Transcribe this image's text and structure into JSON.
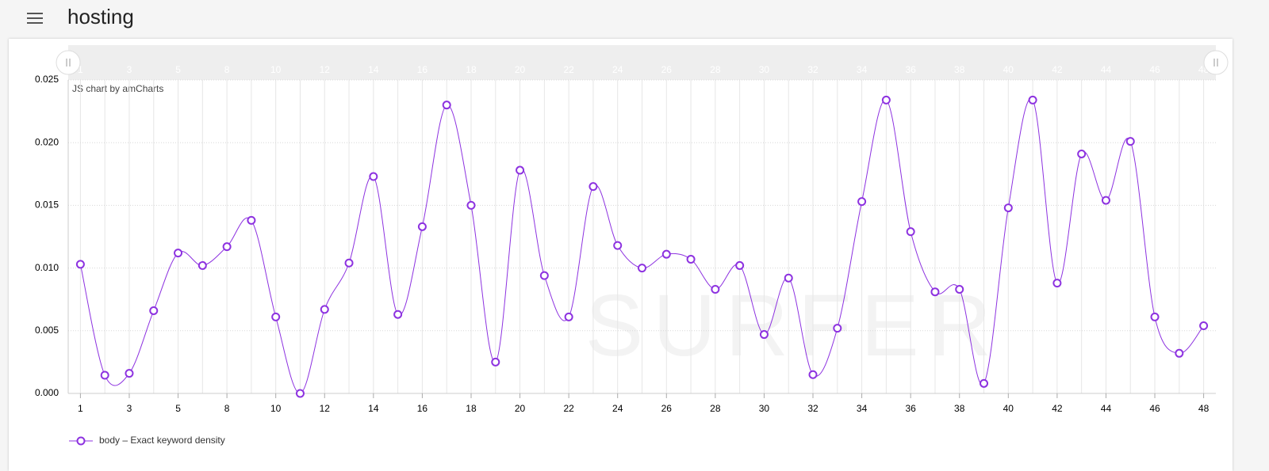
{
  "header": {
    "title": "hosting"
  },
  "chart_data": {
    "type": "line",
    "credit": "JS chart by amCharts",
    "watermark": "SURFER",
    "categories": [
      "1",
      null,
      "3",
      null,
      "5",
      null,
      "8",
      null,
      "10",
      null,
      "12",
      null,
      "14",
      null,
      "16",
      null,
      "18",
      null,
      "20",
      null,
      "22",
      null,
      "24",
      null,
      "26",
      null,
      "28",
      null,
      "30",
      null,
      "32",
      null,
      "34",
      null,
      "36",
      null,
      "38",
      null,
      "40",
      null,
      "42",
      null,
      "44",
      null,
      "46",
      null,
      "48"
    ],
    "series": [
      {
        "name": "body – Exact keyword density",
        "color": "#8d32e0",
        "values": [
          0.0103,
          0.00145,
          0.0016,
          0.0066,
          0.0112,
          0.0102,
          0.0117,
          0.0138,
          0.0061,
          0,
          0.0067,
          0.0104,
          0.0173,
          0.0063,
          0.0133,
          0.023,
          0.015,
          0.0025,
          0.0178,
          0.0094,
          0.0061,
          0.0165,
          0.0118,
          0.01,
          0.0111,
          0.0107,
          0.0083,
          0.0102,
          0.0047,
          0.0092,
          0.0015,
          0.0052,
          0.0153,
          0.0234,
          0.0129,
          0.0081,
          0.0083,
          0.0008,
          0.0148,
          0.0234,
          0.0088,
          0.0191,
          0.0154,
          0.0201,
          0.0061,
          0.0032,
          0.0054
        ]
      }
    ],
    "ylim": [
      0,
      0.025
    ],
    "yticks": [
      {
        "value": 0,
        "label": "0.000"
      },
      {
        "value": 0.005,
        "label": "0.005"
      },
      {
        "value": 0.01,
        "label": "0.010"
      },
      {
        "value": 0.015,
        "label": "0.015"
      },
      {
        "value": 0.02,
        "label": "0.020"
      },
      {
        "value": 0.025,
        "label": "0.025"
      }
    ],
    "grid": true,
    "legend": "bottom"
  }
}
